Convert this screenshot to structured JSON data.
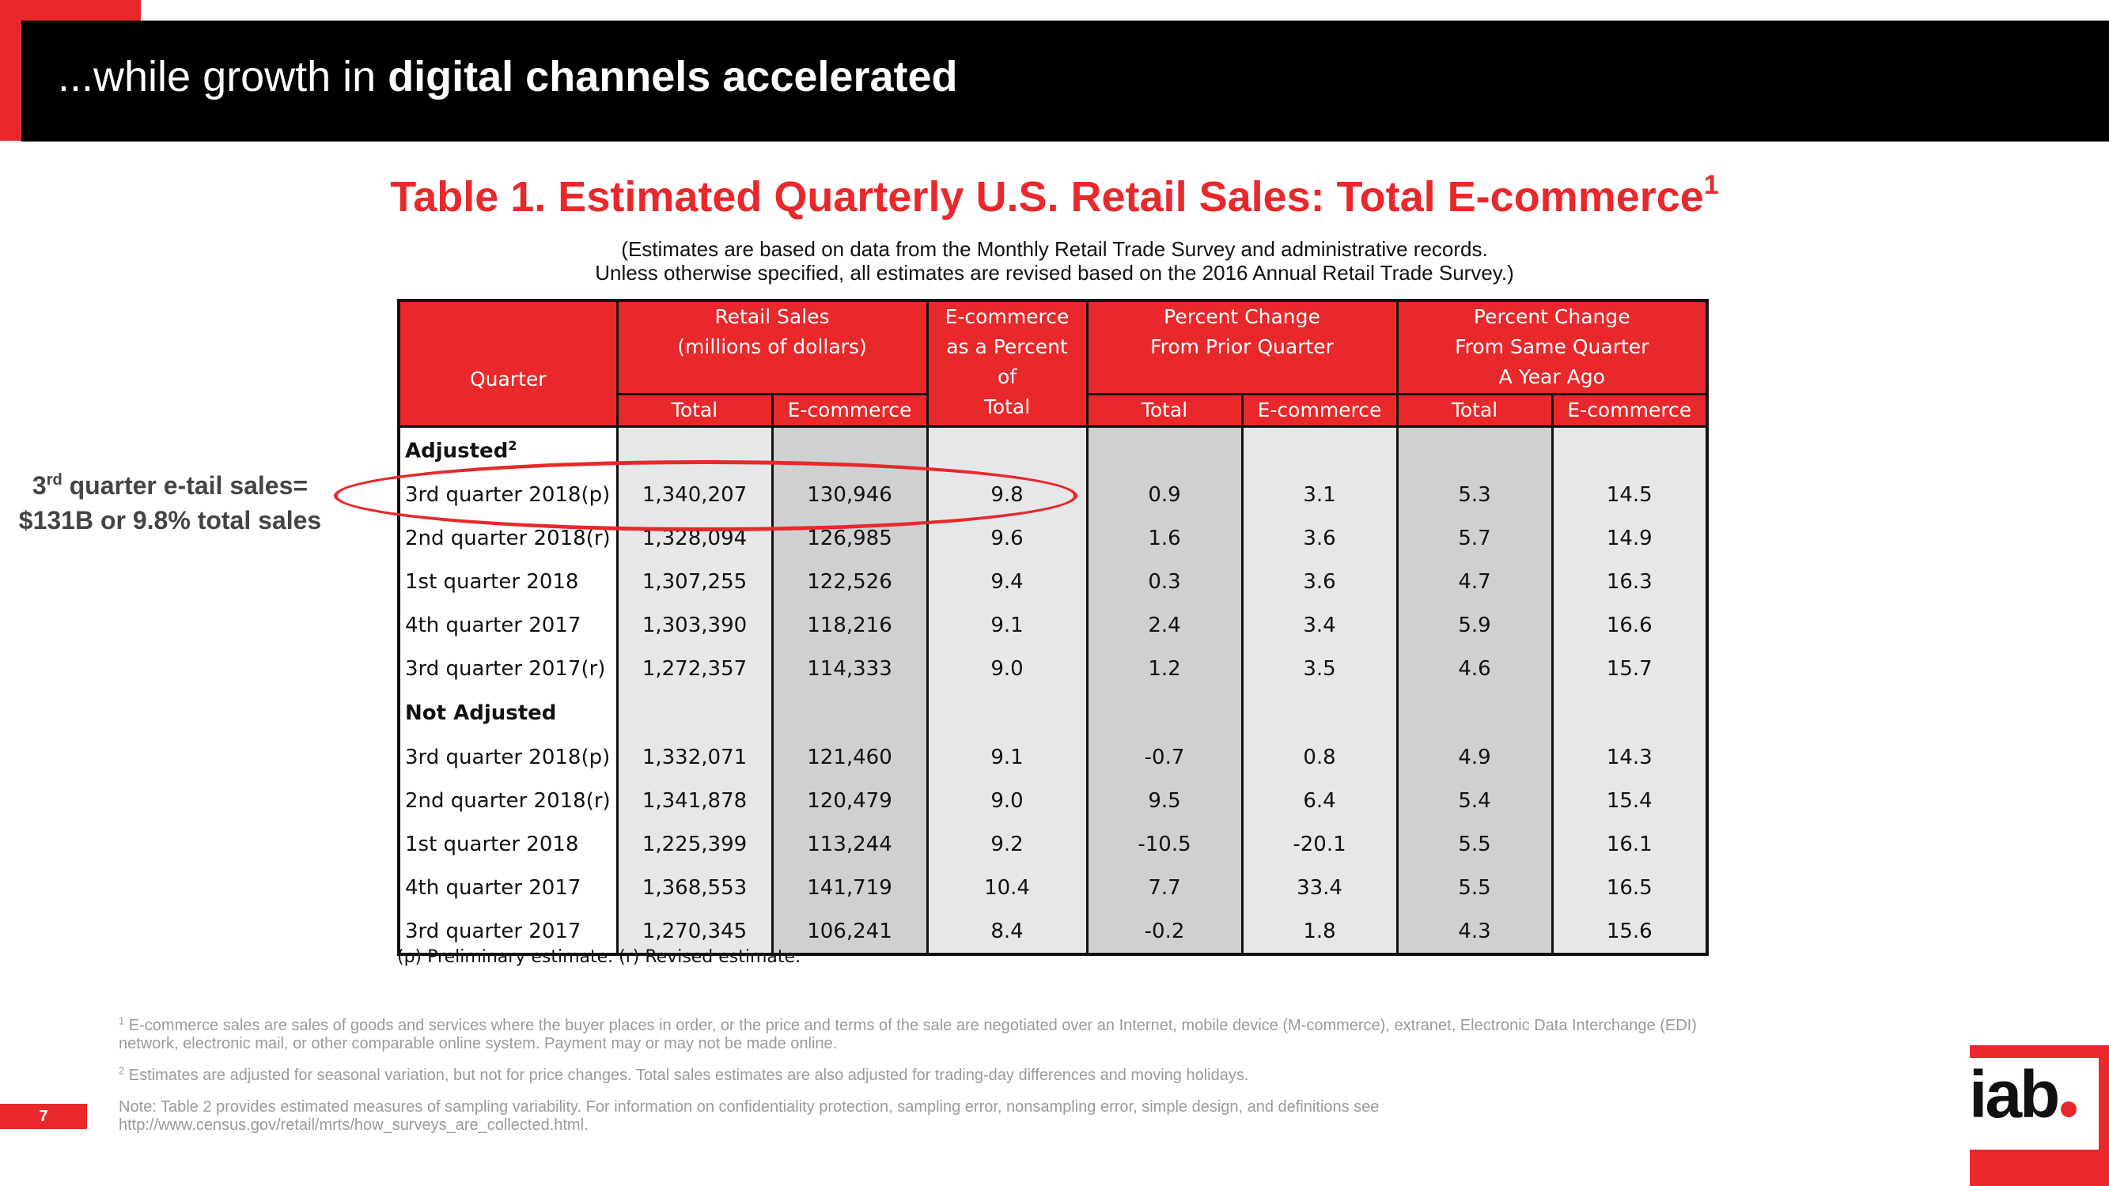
{
  "header": {
    "title_prefix": "...while growth in ",
    "title_bold": "digital channels accelerated"
  },
  "table_title": "Table 1. Estimated Quarterly U.S. Retail Sales: Total E-commerce",
  "table_title_sup": "1",
  "subtitle_line1": "(Estimates are based on data from the Monthly Retail Trade Survey and administrative records.",
  "subtitle_line2": "Unless otherwise specified, all estimates are revised based on the 2016 Annual Retail Trade Survey.)",
  "side_note": {
    "line1_num": "3",
    "line1_sup": "rd",
    "line1_rest": " quarter e-tail sales=",
    "line2": "$131B or 9.8% total sales"
  },
  "table": {
    "headers": {
      "quarter": "Quarter",
      "retail_sales_1": "Retail Sales",
      "retail_sales_2": "(millions of dollars)",
      "ecom_pct_1": "E-commerce",
      "ecom_pct_2": "as a Percent",
      "ecom_pct_3": "of",
      "ecom_pct_4": "Total",
      "prior_1": "Percent Change",
      "prior_2": "From Prior Quarter",
      "year_1": "Percent Change",
      "year_2": "From Same Quarter",
      "year_3": "A Year Ago",
      "total": "Total",
      "ecommerce": "E-commerce"
    },
    "groups": {
      "adjusted": "Adjusted",
      "adjusted_sup": "2",
      "not_adjusted": "Not Adjusted"
    },
    "adjusted_rows": [
      [
        "3rd quarter 2018(p)",
        "1,340,207",
        "130,946",
        "9.8",
        "0.9",
        "3.1",
        "5.3",
        "14.5"
      ],
      [
        "2nd quarter 2018(r)",
        "1,328,094",
        "126,985",
        "9.6",
        "1.6",
        "3.6",
        "5.7",
        "14.9"
      ],
      [
        "1st quarter 2018",
        "1,307,255",
        "122,526",
        "9.4",
        "0.3",
        "3.6",
        "4.7",
        "16.3"
      ],
      [
        "4th quarter 2017",
        "1,303,390",
        "118,216",
        "9.1",
        "2.4",
        "3.4",
        "5.9",
        "16.6"
      ],
      [
        "3rd quarter 2017(r)",
        "1,272,357",
        "114,333",
        "9.0",
        "1.2",
        "3.5",
        "4.6",
        "15.7"
      ]
    ],
    "not_adjusted_rows": [
      [
        "3rd quarter 2018(p)",
        "1,332,071",
        "121,460",
        "9.1",
        "-0.7",
        "0.8",
        "4.9",
        "14.3"
      ],
      [
        "2nd quarter 2018(r)",
        "1,341,878",
        "120,479",
        "9.0",
        "9.5",
        "6.4",
        "5.4",
        "15.4"
      ],
      [
        "1st quarter 2018",
        "1,225,399",
        "113,244",
        "9.2",
        "-10.5",
        "-20.1",
        "5.5",
        "16.1"
      ],
      [
        "4th quarter 2017",
        "1,368,553",
        "141,719",
        "10.4",
        "7.7",
        "33.4",
        "5.5",
        "16.5"
      ],
      [
        "3rd quarter 2017",
        "1,270,345",
        "106,241",
        "8.4",
        "-0.2",
        "1.8",
        "4.3",
        "15.6"
      ]
    ],
    "note": "(p) Preliminary estimate. (r) Revised estimate."
  },
  "footnotes": {
    "f1_sup": "1",
    "f1": " E-commerce sales are sales of goods and services where the buyer places in order, or the price and terms of the sale are negotiated over an Internet, mobile device (M-commerce), extranet, Electronic Data Interchange (EDI) network, electronic mail, or other comparable online system. Payment may or may not be made online.",
    "f2_sup": "2",
    "f2": " Estimates are adjusted for seasonal variation, but not for price changes. Total sales estimates are also adjusted for trading-day differences and moving holidays.",
    "note": "Note: Table 2 provides estimated measures of sampling variability. For information on confidentiality protection, sampling error, nonsampling error, simple design, and definitions see http://www.census.gov/retail/mrts/how_surveys_are_collected.html."
  },
  "page_number": "7",
  "logo_text": "iab",
  "colors": {
    "accent": "#e8282b",
    "header_bg": "#000000",
    "cell_light": "#e6e7e8",
    "cell_dark": "#cfd0d2"
  }
}
